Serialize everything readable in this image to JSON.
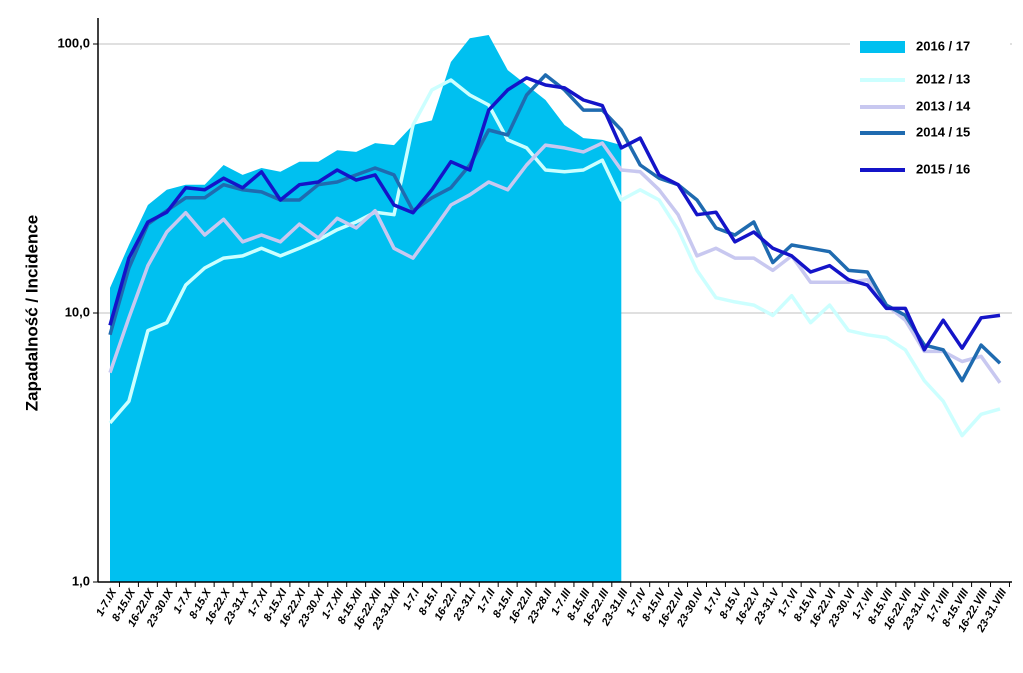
{
  "chart_data": {
    "type": "line",
    "y_label": "Zapadalność  /  Incidence",
    "log_scale": true,
    "grid": true,
    "legend": "top-right",
    "ylim": [
      1,
      100
    ],
    "yticks": [
      {
        "value": 1,
        "label": "1,0"
      },
      {
        "value": 10,
        "label": "10,0"
      },
      {
        "value": 100,
        "label": "100,0"
      }
    ],
    "categories": [
      "1-7.IX",
      "8-15.IX",
      "16-22.IX",
      "23-30.IX",
      "1-7.X",
      "8-15.X",
      "16-22.X",
      "23-31.X",
      "1-7.XI",
      "8-15.XI",
      "16-22.XI",
      "23-30.XI",
      "1-7.XII",
      "8-15.XII",
      "16-22.XII",
      "23-31.XII",
      "1-7.I",
      "8-15.I",
      "16-22.I",
      "23-31.I",
      "1-7.II",
      "8-15.II",
      "16-22.II",
      "23-28.II",
      "1-7.III",
      "8-15.III",
      "16-22.III",
      "23-31.III",
      "1-7.IV",
      "8-15.IV",
      "16-22.IV",
      "23-30.IV",
      "1-7.V",
      "8-15.V",
      "16-22.V",
      "23-31.V",
      "1-7.VI",
      "8-15.VI",
      "16-22.VI",
      "23-30.VI",
      "1-7.VII",
      "8-15.VII",
      "16-22.VII",
      "23-31.VII",
      "1-7.VIII",
      "8-15.VIII",
      "16-22.VIII",
      "23-31.VIII"
    ],
    "series": [
      {
        "name": "2016 / 17",
        "style": "area",
        "color": "#00c0f0",
        "values": [
          12.4,
          17.9,
          25.2,
          28.7,
          30,
          30,
          35.5,
          32.6,
          34.6,
          33.5,
          36.5,
          36.5,
          40.3,
          39.7,
          42.8,
          42.1,
          50,
          52,
          85.7,
          105,
          108,
          80,
          70.4,
          61.9,
          50,
          44.7,
          44,
          42.1,
          null,
          null,
          null,
          null,
          null,
          null,
          null,
          null,
          null,
          null,
          null,
          null,
          null,
          null,
          null,
          null,
          null,
          null,
          null,
          null
        ]
      },
      {
        "name": "2012 / 13",
        "color": "#ccffff",
        "values": [
          3.9,
          4.7,
          8.6,
          9.2,
          12.7,
          14.7,
          16,
          16.3,
          17.4,
          16.3,
          17.4,
          18.7,
          20.4,
          21.8,
          23.7,
          23.2,
          50,
          67.5,
          73.5,
          64.6,
          59.3,
          44,
          41.1,
          34,
          33.5,
          34,
          37,
          26.3,
          28.7,
          26.3,
          20.4,
          14.4,
          11.4,
          11,
          10.7,
          9.8,
          11.6,
          9.2,
          10.7,
          8.6,
          8.3,
          8.1,
          7.3,
          5.6,
          4.7,
          3.5,
          4.2,
          4.4
        ]
      },
      {
        "name": "2013 / 14",
        "color": "#c8c8f0",
        "values": [
          6,
          9.6,
          15,
          20,
          23.6,
          19.5,
          22.3,
          18.4,
          19.5,
          18.4,
          21.4,
          19,
          22.5,
          20.7,
          24,
          17.4,
          16,
          20,
          25.2,
          27.5,
          30.7,
          28.7,
          35.5,
          42.1,
          41.1,
          39.7,
          42.8,
          34,
          33.5,
          28.7,
          23.2,
          16.3,
          17.4,
          16,
          16,
          14.4,
          16.3,
          13,
          13,
          13,
          13.3,
          10.7,
          9.4,
          7.2,
          7.2,
          6.6,
          6.9,
          5.5
        ]
      },
      {
        "name": "2014 / 15",
        "color": "#1f6bb0",
        "values": [
          8.3,
          14.7,
          21.4,
          24,
          26.8,
          26.8,
          30,
          28.7,
          28.2,
          26.3,
          26.3,
          30,
          30.7,
          32.6,
          34.6,
          32.6,
          24,
          26.8,
          29.2,
          35.5,
          47.9,
          45.9,
          64.6,
          76.7,
          67.5,
          56.8,
          56.8,
          47.9,
          35.5,
          31.7,
          30,
          26.3,
          20.7,
          19.5,
          21.8,
          15.4,
          17.9,
          17.4,
          16.9,
          14.4,
          14.2,
          10.7,
          9.8,
          7.6,
          7.3,
          5.6,
          7.6,
          6.5
        ]
      },
      {
        "name": "2015 / 16",
        "color": "#1414c8",
        "values": [
          9,
          16,
          21.8,
          23.7,
          29.2,
          28.7,
          31.7,
          29.2,
          33.5,
          26.3,
          30,
          30.7,
          34,
          31.2,
          32.6,
          25.2,
          23.6,
          28.7,
          36.5,
          34,
          56.8,
          67.5,
          74.8,
          70.4,
          68.7,
          61.9,
          59,
          41.1,
          44.7,
          32.6,
          30,
          23.2,
          23.7,
          18.4,
          20,
          17.4,
          16.3,
          14.2,
          15,
          13.3,
          12.7,
          10.4,
          10.4,
          7.3,
          9.4,
          7.4,
          9.6,
          9.8
        ]
      }
    ]
  }
}
